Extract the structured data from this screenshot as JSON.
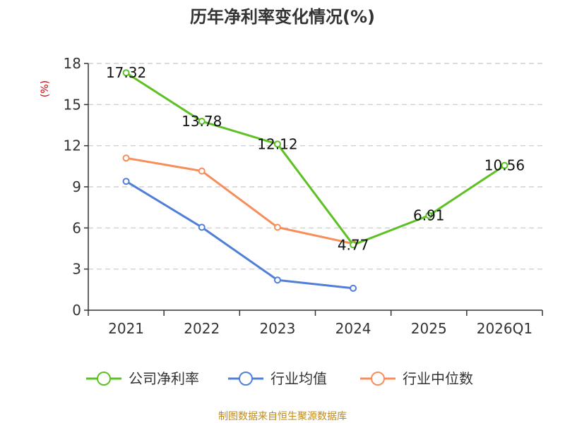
{
  "chart_data": {
    "type": "line",
    "title": "历年净利率变化情况(%)",
    "xlabel": "",
    "ylabel": "(%)",
    "categories": [
      "2021",
      "2022",
      "2023",
      "2024",
      "2025",
      "2026Q1"
    ],
    "ylim": [
      0,
      18
    ],
    "yticks": [
      0,
      3,
      6,
      9,
      12,
      15,
      18
    ],
    "grid": true,
    "legend_position": "bottom",
    "series": [
      {
        "name": "公司净利率",
        "color": "#5cc123",
        "values": [
          17.32,
          13.78,
          12.12,
          4.77,
          6.91,
          10.56
        ],
        "labels": [
          "17.32",
          "13.78",
          "12.12",
          "4.77",
          "6.91",
          "10.56"
        ]
      },
      {
        "name": "行业均值",
        "color": "#4f7fd9",
        "values": [
          9.4,
          6.05,
          2.2,
          1.6,
          null,
          null
        ]
      },
      {
        "name": "行业中位数",
        "color": "#f78e5a",
        "values": [
          11.1,
          10.15,
          6.05,
          4.85,
          null,
          null
        ]
      }
    ],
    "source": "制图数据来自恒生聚源数据库",
    "colors": {
      "axis": "#333333",
      "grid": "#c8c8c8",
      "ylabel": "#cc0000",
      "source": "#c08a1c"
    }
  }
}
